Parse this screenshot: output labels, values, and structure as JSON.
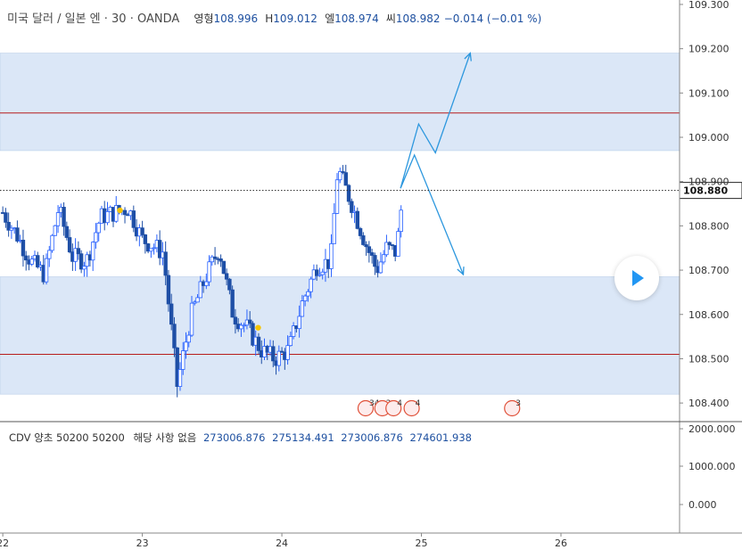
{
  "header": {
    "symbol": "미국 달러 / 일본 엔 · 30 · OANDA",
    "open_label": "영형",
    "open": "108.996",
    "high_label": "H",
    "high": "109.012",
    "low_label": "엘",
    "low": "108.974",
    "close_label": "씨",
    "close": "108.982",
    "change": "−0.014 (−0.01 %)"
  },
  "indicator": {
    "name": "CDV 양초 50200 50200",
    "note": "해당 사항 없음",
    "values": [
      "273006.876",
      "275134.491",
      "273006.876",
      "274601.938"
    ]
  },
  "last_price": "108.880",
  "colors": {
    "up": "#2962ff",
    "down": "#1e4fa6",
    "zone": "#dbe7f7",
    "level": "#b71c1c",
    "arrow": "#2c97de",
    "dot": "#f5c400"
  },
  "event_markers": [
    {
      "day": 24.6,
      "label": "34"
    },
    {
      "day": 24.72,
      "label": "2"
    },
    {
      "day": 24.8,
      "label": "4"
    },
    {
      "day": 24.93,
      "label": "4"
    },
    {
      "day": 25.65,
      "label": "3"
    }
  ],
  "chart_data": {
    "type": "candlestick",
    "instrument": "USD/JPY 30 OANDA",
    "x_ticks": [
      "22",
      "23",
      "24",
      "25",
      "26"
    ],
    "y_ticks": [
      "109.300",
      "109.200",
      "109.100",
      "109.000",
      "108.900",
      "108.800",
      "108.700",
      "108.600",
      "108.500",
      "108.400"
    ],
    "ylim": [
      108.36,
      109.31
    ],
    "xlim": [
      21.98,
      26.85
    ],
    "zones": [
      {
        "from": 108.97,
        "to": 109.19
      },
      {
        "from": 108.42,
        "to": 108.685
      }
    ],
    "levels": [
      109.055,
      108.51
    ],
    "last_price": 108.88,
    "projection_arrows": [
      [
        [
          24.85,
          108.885
        ],
        [
          24.98,
          109.03
        ],
        [
          25.1,
          108.965
        ],
        [
          25.35,
          109.19
        ]
      ],
      [
        [
          24.85,
          108.885
        ],
        [
          24.95,
          108.96
        ],
        [
          25.3,
          108.69
        ]
      ]
    ],
    "dots": [
      [
        22.84,
        108.835
      ],
      [
        23.83,
        108.57
      ]
    ],
    "path": [
      [
        22.0,
        108.83
      ],
      [
        22.1,
        108.78
      ],
      [
        22.2,
        108.72
      ],
      [
        22.3,
        108.69
      ],
      [
        22.4,
        108.84
      ],
      [
        22.5,
        108.73
      ],
      [
        22.6,
        108.72
      ],
      [
        22.7,
        108.82
      ],
      [
        22.8,
        108.83
      ],
      [
        22.9,
        108.84
      ],
      [
        23.0,
        108.77
      ],
      [
        23.1,
        108.75
      ],
      [
        23.15,
        108.74
      ],
      [
        23.25,
        108.44
      ],
      [
        23.35,
        108.6
      ],
      [
        23.45,
        108.68
      ],
      [
        23.55,
        108.75
      ],
      [
        23.65,
        108.6
      ],
      [
        23.75,
        108.57
      ],
      [
        23.85,
        108.52
      ],
      [
        23.95,
        108.5
      ],
      [
        24.05,
        108.52
      ],
      [
        24.15,
        108.63
      ],
      [
        24.25,
        108.71
      ],
      [
        24.35,
        108.72
      ],
      [
        24.4,
        108.93
      ],
      [
        24.5,
        108.85
      ],
      [
        24.6,
        108.76
      ],
      [
        24.68,
        108.7
      ],
      [
        24.75,
        108.75
      ],
      [
        24.82,
        108.74
      ],
      [
        24.87,
        108.88
      ]
    ],
    "indicator": {
      "name": "CDV 양초 50200 50200",
      "y_ticks": [
        "2000.000",
        "1000.000",
        "0.000"
      ]
    }
  }
}
